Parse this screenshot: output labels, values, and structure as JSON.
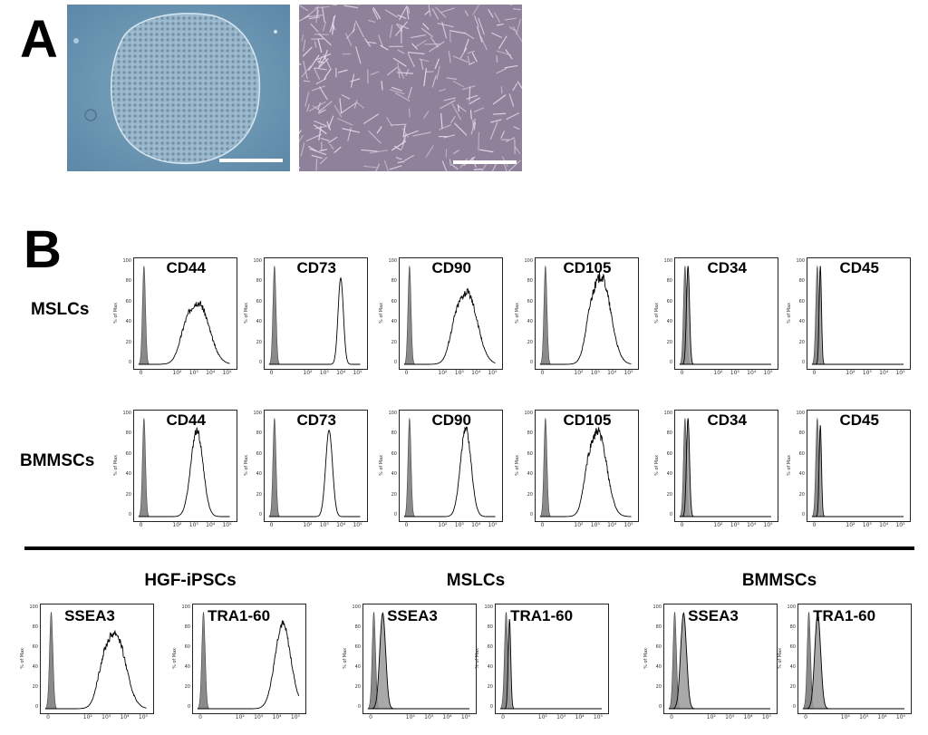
{
  "panels": {
    "a": {
      "letter": "A"
    },
    "b": {
      "letter": "B"
    }
  },
  "micrographs": [
    {
      "name": "hgf-ipsc-colony",
      "description_colors": {
        "bg": "#6f9bb8",
        "cells": "#a9c4d6"
      }
    },
    {
      "name": "mslc-culture",
      "description_colors": {
        "bg": "#8f7e97",
        "cells": "#d7cfe0"
      }
    }
  ],
  "rows": {
    "mslcs": "MSLCs",
    "bmmscs": "BMMSCs"
  },
  "groups": {
    "hgf": "HGF-iPSCs",
    "mslcs": "MSLCs",
    "bmmscs": "BMMSCs"
  },
  "axis": {
    "y_ticks": [
      "100",
      "80",
      "60",
      "40",
      "20",
      "0"
    ],
    "y_label": "% of Max",
    "x_ticks": [
      "0",
      "10²",
      "10³",
      "10⁴",
      "10⁵"
    ]
  },
  "colors": {
    "control_fill": "#8a8a8a",
    "line": "#000000"
  },
  "chart_data": [
    {
      "type": "area",
      "row": "MSLCs",
      "marker": "CD44",
      "peak_log": 3.4,
      "width": 1.4,
      "height": 0.6,
      "shape": "broad"
    },
    {
      "type": "area",
      "row": "MSLCs",
      "marker": "CD73",
      "peak_log": 4.1,
      "width": 0.35,
      "height": 0.85,
      "shape": "narrow"
    },
    {
      "type": "area",
      "row": "MSLCs",
      "marker": "CD90",
      "peak_log": 3.6,
      "width": 1.3,
      "height": 0.7,
      "shape": "broad"
    },
    {
      "type": "area",
      "row": "MSLCs",
      "marker": "CD105",
      "peak_log": 3.5,
      "width": 1.2,
      "height": 0.85,
      "shape": "broad"
    },
    {
      "type": "area",
      "row": "MSLCs",
      "marker": "CD34",
      "peak_log": 0.3,
      "width": 0.2,
      "height": 0.97,
      "shape": "negative"
    },
    {
      "type": "area",
      "row": "MSLCs",
      "marker": "CD45",
      "peak_log": 0.3,
      "width": 0.15,
      "height": 0.97,
      "shape": "negative"
    },
    {
      "type": "area",
      "row": "BMMSCs",
      "marker": "CD44",
      "peak_log": 3.3,
      "width": 0.8,
      "height": 0.85,
      "shape": "medium"
    },
    {
      "type": "area",
      "row": "BMMSCs",
      "marker": "CD73",
      "peak_log": 3.4,
      "width": 0.45,
      "height": 0.85,
      "shape": "narrow"
    },
    {
      "type": "area",
      "row": "BMMSCs",
      "marker": "CD90",
      "peak_log": 3.5,
      "width": 0.7,
      "height": 0.87,
      "shape": "medium"
    },
    {
      "type": "area",
      "row": "BMMSCs",
      "marker": "CD105",
      "peak_log": 3.3,
      "width": 1.1,
      "height": 0.82,
      "shape": "broad"
    },
    {
      "type": "area",
      "row": "BMMSCs",
      "marker": "CD34",
      "peak_log": 0.3,
      "width": 0.2,
      "height": 0.97,
      "shape": "negative"
    },
    {
      "type": "area",
      "row": "BMMSCs",
      "marker": "CD45",
      "peak_log": 0.3,
      "width": 0.15,
      "height": 0.9,
      "shape": "negative"
    },
    {
      "type": "area",
      "row": "HGF-iPSCs",
      "marker": "SSEA3",
      "peak_log": 3.6,
      "width": 1.2,
      "height": 0.75,
      "shape": "broad"
    },
    {
      "type": "area",
      "row": "HGF-iPSCs",
      "marker": "TRA1-60",
      "peak_log": 4.4,
      "width": 0.9,
      "height": 0.85,
      "shape": "right"
    },
    {
      "type": "area",
      "row": "MSLCs",
      "marker": "SSEA3",
      "peak_log": 0.6,
      "width": 0.35,
      "height": 0.96,
      "shape": "negative"
    },
    {
      "type": "area",
      "row": "MSLCs",
      "marker": "TRA1-60",
      "peak_log": 0.3,
      "width": 0.15,
      "height": 0.9,
      "shape": "negative"
    },
    {
      "type": "area",
      "row": "BMMSCs",
      "marker": "SSEA3",
      "peak_log": 0.6,
      "width": 0.35,
      "height": 0.96,
      "shape": "negative"
    },
    {
      "type": "area",
      "row": "BMMSCs",
      "marker": "TRA1-60",
      "peak_log": 0.6,
      "width": 0.35,
      "height": 0.96,
      "shape": "negative"
    }
  ]
}
